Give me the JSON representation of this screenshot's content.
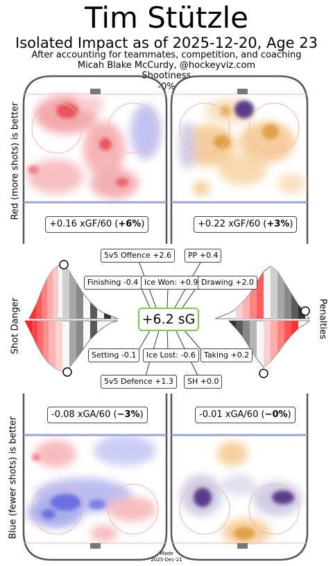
{
  "header": {
    "title": "Tim Stützle",
    "subtitle": "Isolated Impact as of 2025-12-20, Age 23",
    "note_line1": "After accounting for teammates, competition, and coaching",
    "note_line2": "Micah Blake McCurdy, @hockeyviz.com",
    "shootiness_label": "Shootiness",
    "shootiness_value": "-0%"
  },
  "axis_labels": {
    "top": "Red (more shots) is better",
    "bottom": "Blue (fewer shots) is better",
    "left_middle": "Shot Danger",
    "right_middle": "Penalties"
  },
  "rink_stats": {
    "top_left": {
      "value": "+0.16 xGF/60 (",
      "pct": "+6%",
      "close": ")"
    },
    "top_right": {
      "value": "+0.22 xGF/60 (",
      "pct": "+3%",
      "close": ")"
    },
    "bottom_left": {
      "value": "-0.08 xGA/60 (",
      "pct": "−3%",
      "close": ")"
    },
    "bottom_right": {
      "value": "-0.01 xGA/60 (",
      "pct": "−0%",
      "close": ")"
    }
  },
  "impact": {
    "total": "+6.2 sG",
    "components": {
      "ev_offence": "5v5 Offence +2.6",
      "pp": "PP +0.4",
      "finishing": "Finishing -0.4",
      "ice_won": "Ice Won: +0.9",
      "drawing": "Drawing +2.0",
      "setting": "Setting -0.1",
      "ice_lost": "Ice Lost: -0.6",
      "taking": "Taking +0.2",
      "ev_defence": "5v5 Defence +1.3",
      "sh": "SH +0.0"
    }
  },
  "footer": {
    "made": "Made",
    "date": "2025-Dec-21"
  },
  "chart_data": {
    "type": "heatmap",
    "panels": [
      {
        "panel": "5v5 offence",
        "stat": "+0.16 xGF/60",
        "pct": "+6%",
        "palette": "red/blue"
      },
      {
        "panel": "PP offence",
        "stat": "+0.22 xGF/60",
        "pct": "+3%",
        "palette": "orange/purple"
      },
      {
        "panel": "5v5 defence",
        "stat": "-0.08 xGA/60",
        "pct": "-3%",
        "palette": "red/blue"
      },
      {
        "panel": "SH defence",
        "stat": "-0.01 xGA/60",
        "pct": "-0%",
        "palette": "orange/purple"
      }
    ],
    "colors": {
      "red": "#e8545a",
      "blue": "#6a6fe0",
      "orange": "#e0a04a",
      "purple": "#5a3d8a",
      "accent_green": "#7ccc4a",
      "rink_line": "#9aa4d8",
      "boards": "#555555"
    }
  }
}
